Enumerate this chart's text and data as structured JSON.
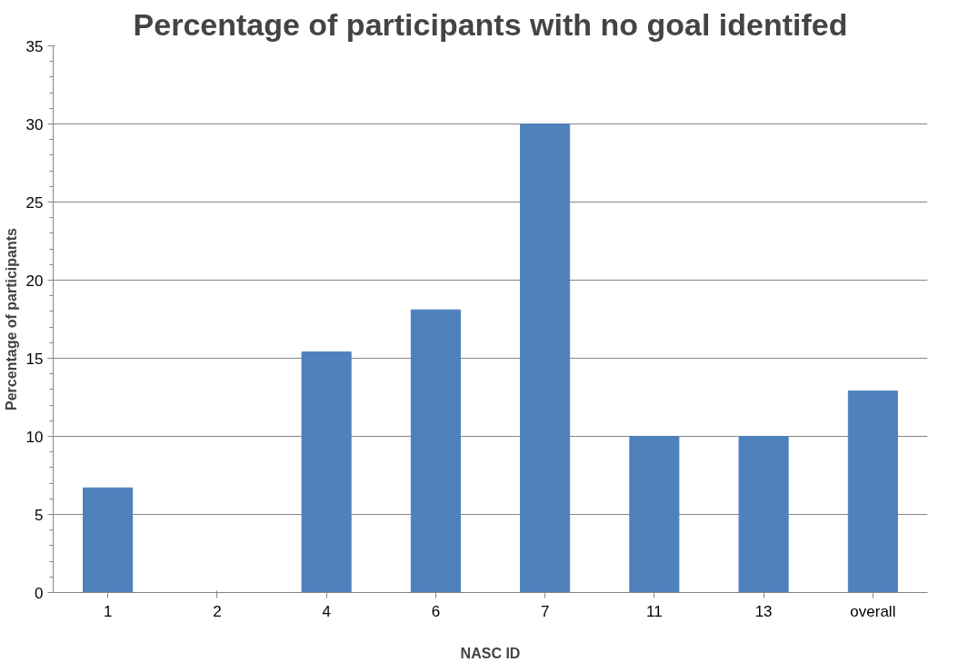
{
  "chart_data": {
    "type": "bar",
    "title": "Percentage of participants with no goal identifed",
    "xlabel": "NASC ID",
    "ylabel": "Percentage of participants",
    "categories": [
      "1",
      "2",
      "4",
      "6",
      "7",
      "11",
      "13",
      "overall"
    ],
    "values": [
      6.7,
      0,
      15.4,
      18.1,
      30,
      10,
      10,
      12.9
    ],
    "color": "#4f81bd",
    "ylim": [
      0,
      35
    ],
    "yticks": [
      0,
      5,
      10,
      15,
      20,
      25,
      30,
      35
    ],
    "grid": "y"
  }
}
